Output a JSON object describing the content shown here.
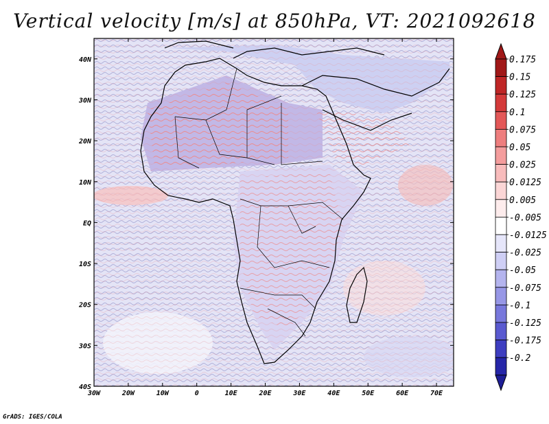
{
  "title": "Vertical velocity [m/s] at 850hPa, VT: 2021092618",
  "credit": "GrADS: IGES/COLA",
  "map": {
    "lon_range": [
      -30,
      75
    ],
    "lat_range": [
      -40,
      45
    ],
    "lat_ticks": [
      {
        "value": 40,
        "label": "40N"
      },
      {
        "value": 30,
        "label": "30N"
      },
      {
        "value": 20,
        "label": "20N"
      },
      {
        "value": 10,
        "label": "10N"
      },
      {
        "value": 0,
        "label": "EQ"
      },
      {
        "value": -10,
        "label": "10S"
      },
      {
        "value": -20,
        "label": "20S"
      },
      {
        "value": -30,
        "label": "30S"
      },
      {
        "value": -40,
        "label": "40S"
      }
    ],
    "lon_ticks": [
      {
        "value": -30,
        "label": "30W"
      },
      {
        "value": -20,
        "label": "20W"
      },
      {
        "value": -10,
        "label": "10W"
      },
      {
        "value": 0,
        "label": "0"
      },
      {
        "value": 10,
        "label": "10E"
      },
      {
        "value": 20,
        "label": "20E"
      },
      {
        "value": 30,
        "label": "30E"
      },
      {
        "value": 40,
        "label": "40E"
      },
      {
        "value": 50,
        "label": "50E"
      },
      {
        "value": 60,
        "label": "60E"
      },
      {
        "value": 70,
        "label": "70E"
      }
    ]
  },
  "colorbar": {
    "levels": [
      {
        "label": "0.175",
        "color": "#a01818"
      },
      {
        "label": "0.15",
        "color": "#bf2626"
      },
      {
        "label": "0.125",
        "color": "#d43a3a"
      },
      {
        "label": "0.1",
        "color": "#e35858"
      },
      {
        "label": "0.075",
        "color": "#ee7e7e"
      },
      {
        "label": "0.05",
        "color": "#f49d9d"
      },
      {
        "label": "0.025",
        "color": "#f8bcbc"
      },
      {
        "label": "0.0125",
        "color": "#fbd6d6"
      },
      {
        "label": "0.005",
        "color": "#fdecec"
      },
      {
        "label": "-0.005",
        "color": "#ffffff"
      },
      {
        "label": "-0.0125",
        "color": "#e6e6fa"
      },
      {
        "label": "-0.025",
        "color": "#cfcff5"
      },
      {
        "label": "-0.05",
        "color": "#b4b4ee"
      },
      {
        "label": "-0.075",
        "color": "#9797e6"
      },
      {
        "label": "-0.1",
        "color": "#7878dc"
      },
      {
        "label": "-0.125",
        "color": "#5a5ad0"
      },
      {
        "label": "-0.175",
        "color": "#3e3ec0"
      },
      {
        "label": "-0.2",
        "color": "#2626a8"
      }
    ],
    "bottom_color": "#1e1e96"
  }
}
